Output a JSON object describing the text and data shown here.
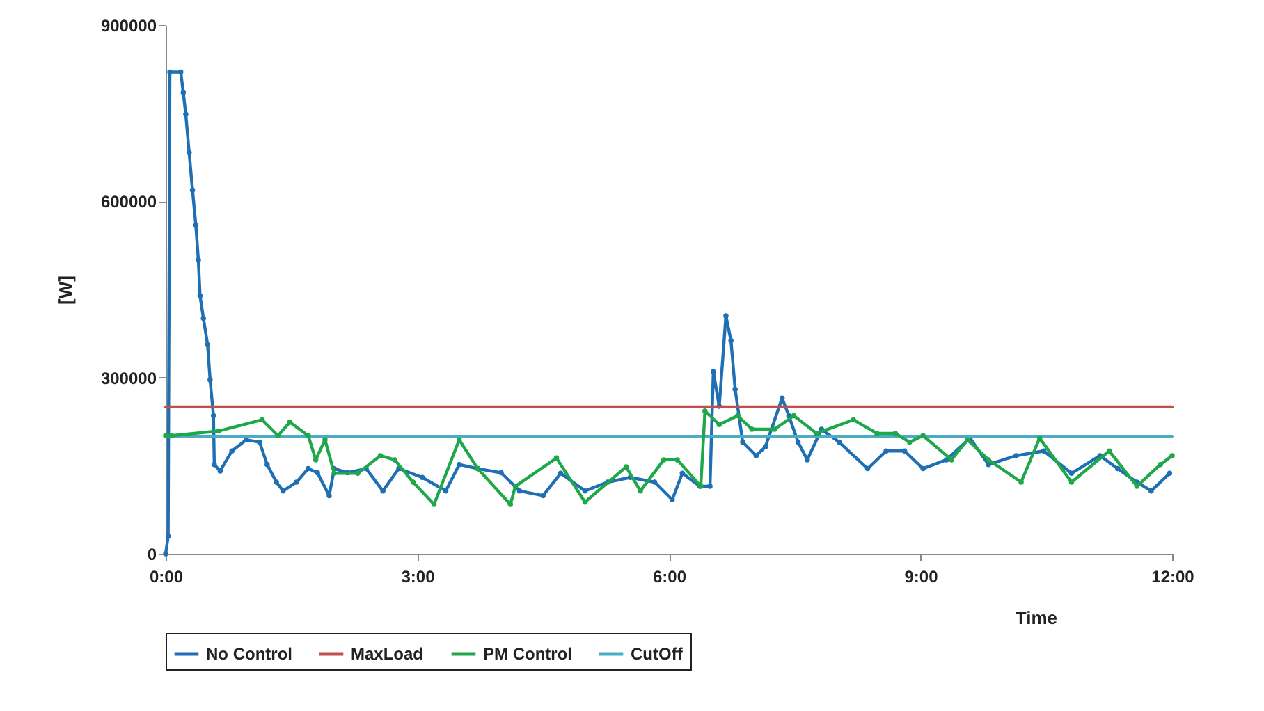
{
  "chart_data": {
    "type": "line",
    "xlabel": "Time",
    "ylabel": "[W]",
    "xlim": [
      0,
      12
    ],
    "xticks": [
      {
        "value": 0,
        "label": "0:00"
      },
      {
        "value": 3,
        "label": "3:00"
      },
      {
        "value": 6,
        "label": "6:00"
      },
      {
        "value": 9,
        "label": "9:00"
      },
      {
        "value": 12,
        "label": "12:00"
      }
    ],
    "ylim": [
      0,
      900000
    ],
    "yticks": [
      0,
      300000,
      600000,
      900000
    ],
    "grid": false,
    "legend": "bottom",
    "series": [
      {
        "name": "No Control",
        "color": "#1f6fb5",
        "marker": "circle",
        "x": [
          0,
          0.03,
          0.05,
          0.18,
          0.21,
          0.24,
          0.28,
          0.32,
          0.36,
          0.39,
          0.41,
          0.45,
          0.5,
          0.53,
          0.57,
          0.58,
          0.65,
          0.79,
          0.96,
          1.12,
          1.21,
          1.32,
          1.4,
          1.56,
          1.7,
          1.81,
          1.95,
          2.01,
          2.17,
          2.39,
          2.59,
          2.78,
          3.06,
          3.34,
          3.5,
          3.72,
          4.0,
          4.22,
          4.5,
          4.71,
          5.0,
          5.27,
          5.54,
          5.83,
          6.04,
          6.16,
          6.37,
          6.49,
          6.53,
          6.6,
          6.68,
          6.74,
          6.79,
          6.88,
          7.04,
          7.15,
          7.35,
          7.43,
          7.54,
          7.65,
          7.82,
          8.03,
          8.37,
          8.59,
          8.81,
          9.03,
          9.31,
          9.59,
          9.81,
          10.14,
          10.47,
          10.8,
          11.14,
          11.35,
          11.58,
          11.75,
          11.97
        ],
        "values": [
          0,
          30000,
          820000,
          820000,
          785000,
          748000,
          683000,
          619000,
          559000,
          500000,
          439000,
          401000,
          356000,
          296000,
          235000,
          152000,
          141000,
          175000,
          194000,
          190000,
          152000,
          122000,
          107000,
          122000,
          145000,
          138000,
          99000,
          145000,
          138000,
          145000,
          107000,
          145000,
          130000,
          107000,
          152000,
          145000,
          138000,
          107000,
          99000,
          137000,
          107000,
          122000,
          130000,
          122000,
          92000,
          137000,
          115000,
          115000,
          310000,
          251000,
          405000,
          363000,
          280000,
          190000,
          167000,
          182000,
          265000,
          235000,
          190000,
          160000,
          212000,
          190000,
          145000,
          175000,
          175000,
          145000,
          160000,
          197000,
          152000,
          167000,
          175000,
          137000,
          167000,
          145000,
          122000,
          107000,
          137000
        ]
      },
      {
        "name": "MaxLoad",
        "color": "#c0504d",
        "x": [
          0,
          12
        ],
        "values": [
          250000,
          250000
        ]
      },
      {
        "name": "PM Control",
        "color": "#1fa84a",
        "marker": "circle",
        "x": [
          0,
          0.07,
          0.63,
          1.15,
          1.34,
          1.48,
          1.7,
          1.79,
          1.9,
          2.01,
          2.29,
          2.56,
          2.73,
          2.95,
          3.2,
          3.5,
          3.72,
          4.11,
          4.17,
          4.66,
          5.0,
          5.49,
          5.66,
          5.94,
          6.1,
          6.38,
          6.43,
          6.6,
          6.82,
          6.99,
          7.26,
          7.49,
          7.76,
          8.2,
          8.48,
          8.7,
          8.87,
          9.03,
          9.37,
          9.56,
          9.81,
          10.2,
          10.42,
          10.8,
          11.25,
          11.58,
          11.86,
          12.0
        ],
        "values": [
          201000,
          201000,
          209000,
          228000,
          201000,
          224000,
          201000,
          160000,
          194000,
          137000,
          137000,
          167000,
          160000,
          122000,
          84000,
          194000,
          145000,
          84000,
          115000,
          163000,
          88000,
          148000,
          107000,
          160000,
          160000,
          115000,
          243000,
          220000,
          235000,
          212000,
          212000,
          235000,
          205000,
          228000,
          205000,
          205000,
          190000,
          201000,
          160000,
          194000,
          160000,
          122000,
          197000,
          122000,
          175000,
          115000,
          152000,
          167000
        ]
      },
      {
        "name": "CutOff",
        "color": "#4bacc6",
        "x": [
          0,
          12
        ],
        "values": [
          200000,
          200000
        ]
      }
    ]
  }
}
